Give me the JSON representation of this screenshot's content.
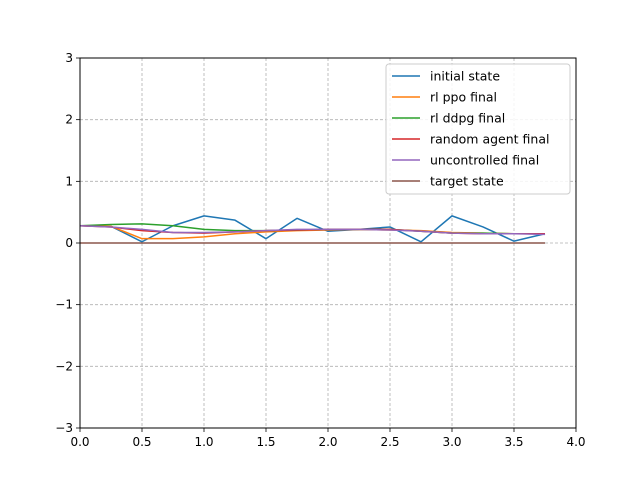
{
  "chart_data": {
    "type": "line",
    "title": "",
    "xlabel": "",
    "ylabel": "",
    "xlim": [
      0,
      4
    ],
    "ylim": [
      -3,
      3
    ],
    "x_ticks": [
      0.0,
      0.5,
      1.0,
      1.5,
      2.0,
      2.5,
      3.0,
      3.5,
      4.0
    ],
    "x_tick_labels": [
      "0.0",
      "0.5",
      "1.0",
      "1.5",
      "2.0",
      "2.5",
      "3.0",
      "3.5",
      "4.0"
    ],
    "y_ticks": [
      -3,
      -2,
      -1,
      0,
      1,
      2,
      3
    ],
    "y_tick_labels": [
      "−3",
      "−2",
      "−1",
      "0",
      "1",
      "2",
      "3"
    ],
    "grid": true,
    "legend_position": "top-right",
    "x": [
      0.0,
      0.25,
      0.5,
      0.75,
      1.0,
      1.25,
      1.5,
      1.75,
      2.0,
      2.25,
      2.5,
      2.75,
      3.0,
      3.25,
      3.5,
      3.75
    ],
    "series": [
      {
        "name": "initial state",
        "color": "#1f77b4",
        "values": [
          0.28,
          0.27,
          0.02,
          0.28,
          0.44,
          0.37,
          0.07,
          0.4,
          0.19,
          0.22,
          0.26,
          0.02,
          0.44,
          0.26,
          0.03,
          0.15
        ]
      },
      {
        "name": "rl ppo final",
        "color": "#ff7f0e",
        "values": [
          0.28,
          0.27,
          0.07,
          0.07,
          0.1,
          0.15,
          0.18,
          0.2,
          0.21,
          0.22,
          0.21,
          0.2,
          0.17,
          0.16,
          0.15,
          0.15
        ]
      },
      {
        "name": "rl ddpg final",
        "color": "#2ca02c",
        "values": [
          0.28,
          0.3,
          0.31,
          0.28,
          0.22,
          0.2,
          0.2,
          0.21,
          0.22,
          0.22,
          0.22,
          0.19,
          0.16,
          0.16,
          0.15,
          0.15
        ]
      },
      {
        "name": "random agent final",
        "color": "#d62728",
        "values": [
          0.28,
          0.26,
          0.2,
          0.17,
          0.16,
          0.18,
          0.2,
          0.21,
          0.22,
          0.22,
          0.22,
          0.19,
          0.16,
          0.15,
          0.15,
          0.15
        ]
      },
      {
        "name": "uncontrolled final",
        "color": "#9467bd",
        "values": [
          0.28,
          0.26,
          0.22,
          0.17,
          0.17,
          0.18,
          0.2,
          0.22,
          0.22,
          0.22,
          0.21,
          0.19,
          0.16,
          0.15,
          0.15,
          0.14
        ]
      },
      {
        "name": "target state",
        "color": "#8c564b",
        "values": [
          0,
          0,
          0,
          0,
          0,
          0,
          0,
          0,
          0,
          0,
          0,
          0,
          0,
          0,
          0,
          0
        ]
      }
    ]
  }
}
